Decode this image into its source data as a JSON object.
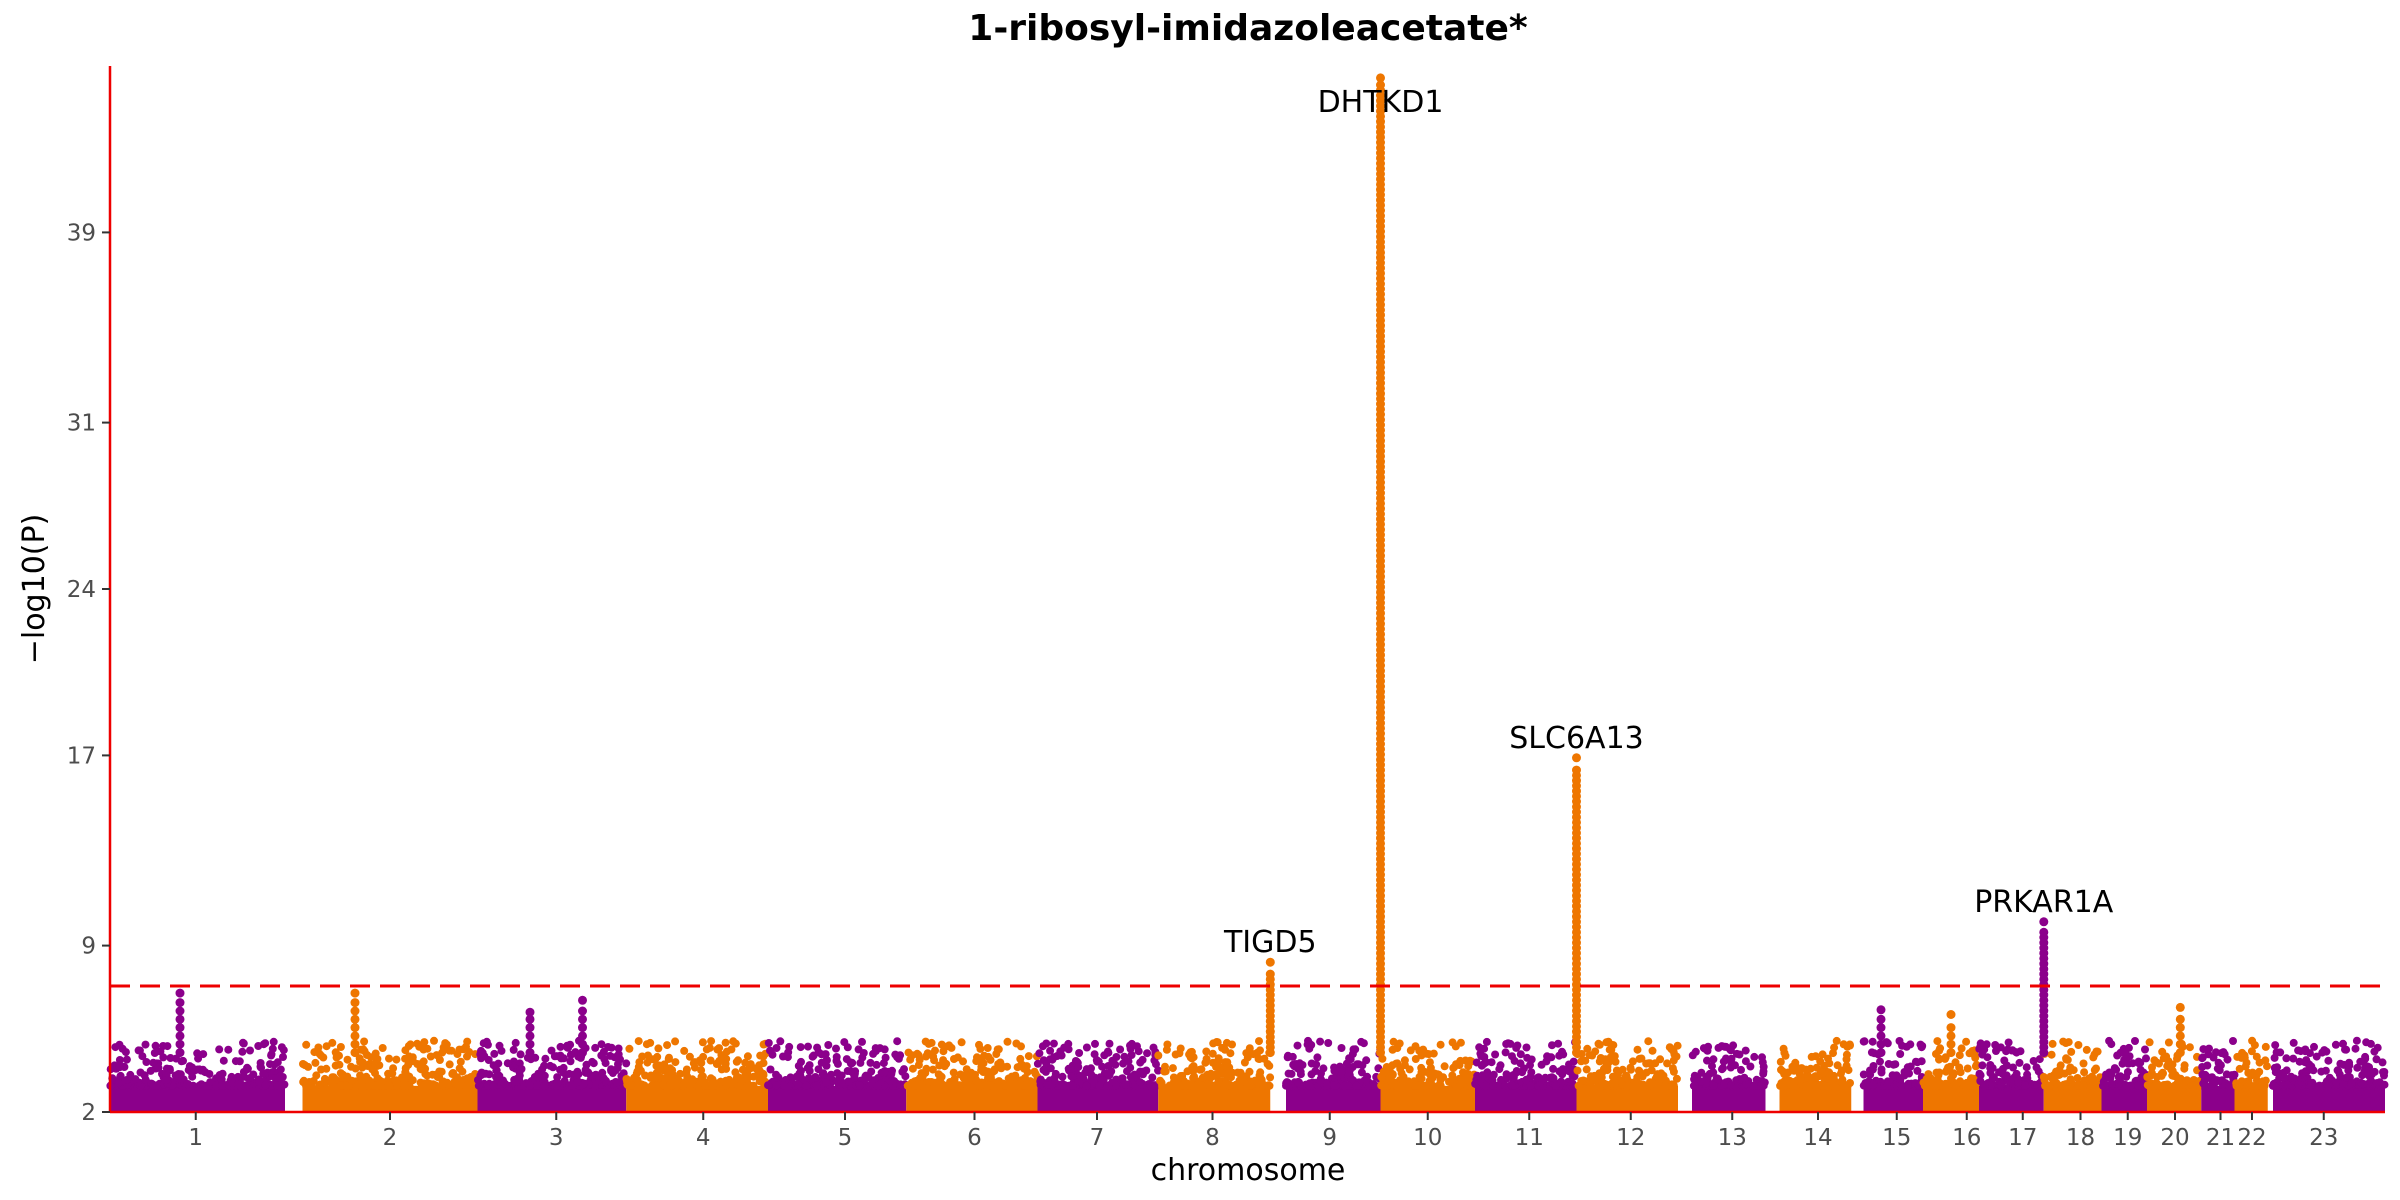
{
  "chart_data": {
    "type": "scatter",
    "title": "1-ribosyl-imidazoleacetate*",
    "xlabel": "chromosome",
    "ylabel": "−log10(P)",
    "ylim": [
      2,
      46
    ],
    "yticks": [
      2,
      9,
      17,
      24,
      31,
      39
    ],
    "significance_threshold": 7.3,
    "grid": false,
    "colors": {
      "odd_chromosome": "#8b008b",
      "even_chromosome": "#ee7600",
      "threshold_line": "#ee0000",
      "axis_line": "#ee0000"
    },
    "chromosomes": [
      {
        "label": "1",
        "start": 0,
        "end": 1.0,
        "tick": 0.49
      },
      {
        "label": "2",
        "start": 1.1,
        "end": 2.1,
        "tick": 1.6
      },
      {
        "label": "3",
        "start": 2.1,
        "end": 2.95,
        "tick": 2.55
      },
      {
        "label": "4",
        "start": 2.95,
        "end": 3.76,
        "tick": 3.39
      },
      {
        "label": "5",
        "start": 3.76,
        "end": 4.55,
        "tick": 4.2
      },
      {
        "label": "6",
        "start": 4.55,
        "end": 5.3,
        "tick": 4.94
      },
      {
        "label": "7",
        "start": 5.3,
        "end": 5.99,
        "tick": 5.64
      },
      {
        "label": "8",
        "start": 5.99,
        "end": 6.63,
        "tick": 6.3
      },
      {
        "label": "9",
        "start": 6.72,
        "end": 7.26,
        "tick": 6.97
      },
      {
        "label": "10",
        "start": 7.26,
        "end": 7.8,
        "tick": 7.53
      },
      {
        "label": "11",
        "start": 7.8,
        "end": 8.38,
        "tick": 8.11
      },
      {
        "label": "12",
        "start": 8.38,
        "end": 8.96,
        "tick": 8.69
      },
      {
        "label": "13",
        "start": 9.04,
        "end": 9.46,
        "tick": 9.27
      },
      {
        "label": "14",
        "start": 9.54,
        "end": 9.95,
        "tick": 9.76
      },
      {
        "label": "15",
        "start": 10.02,
        "end": 10.36,
        "tick": 10.21
      },
      {
        "label": "16",
        "start": 10.36,
        "end": 10.68,
        "tick": 10.61
      },
      {
        "label": "17",
        "start": 10.68,
        "end": 11.05,
        "tick": 10.93
      },
      {
        "label": "18",
        "start": 11.05,
        "end": 11.38,
        "tick": 11.26
      },
      {
        "label": "19",
        "start": 11.38,
        "end": 11.64,
        "tick": 11.53
      },
      {
        "label": "20",
        "start": 11.64,
        "end": 11.95,
        "tick": 11.8
      },
      {
        "label": "21",
        "start": 11.95,
        "end": 12.14,
        "tick": 12.06
      },
      {
        "label": "22",
        "start": 12.14,
        "end": 12.33,
        "tick": 12.24
      },
      {
        "label": "23",
        "start": 12.36,
        "end": 13.0,
        "tick": 12.65
      }
    ],
    "x_range": [
      0,
      13.0
    ],
    "peaks": [
      {
        "gene": "TIGD5",
        "chromosome": "8",
        "x": 6.63,
        "max_y": 8.3
      },
      {
        "gene": "DHTKD1",
        "chromosome": "10",
        "x": 7.26,
        "max_y": 45.5
      },
      {
        "gene": "SLC6A13",
        "chromosome": "12",
        "x": 8.38,
        "max_y": 16.9
      },
      {
        "gene": "PRKAR1A",
        "chromosome": "17",
        "x": 11.05,
        "max_y": 10.0
      }
    ],
    "sub_threshold_peaks": [
      {
        "chromosome": "1",
        "x": 0.4,
        "max_y": 7.0
      },
      {
        "chromosome": "2",
        "x": 1.4,
        "max_y": 7.0
      },
      {
        "chromosome": "3",
        "x": 2.4,
        "max_y": 6.2
      },
      {
        "chromosome": "3",
        "x": 2.7,
        "max_y": 6.7
      },
      {
        "chromosome": "16",
        "x": 10.52,
        "max_y": 6.1
      },
      {
        "chromosome": "15",
        "x": 10.12,
        "max_y": 6.3
      },
      {
        "chromosome": "20",
        "x": 11.83,
        "max_y": 6.4
      }
    ]
  }
}
